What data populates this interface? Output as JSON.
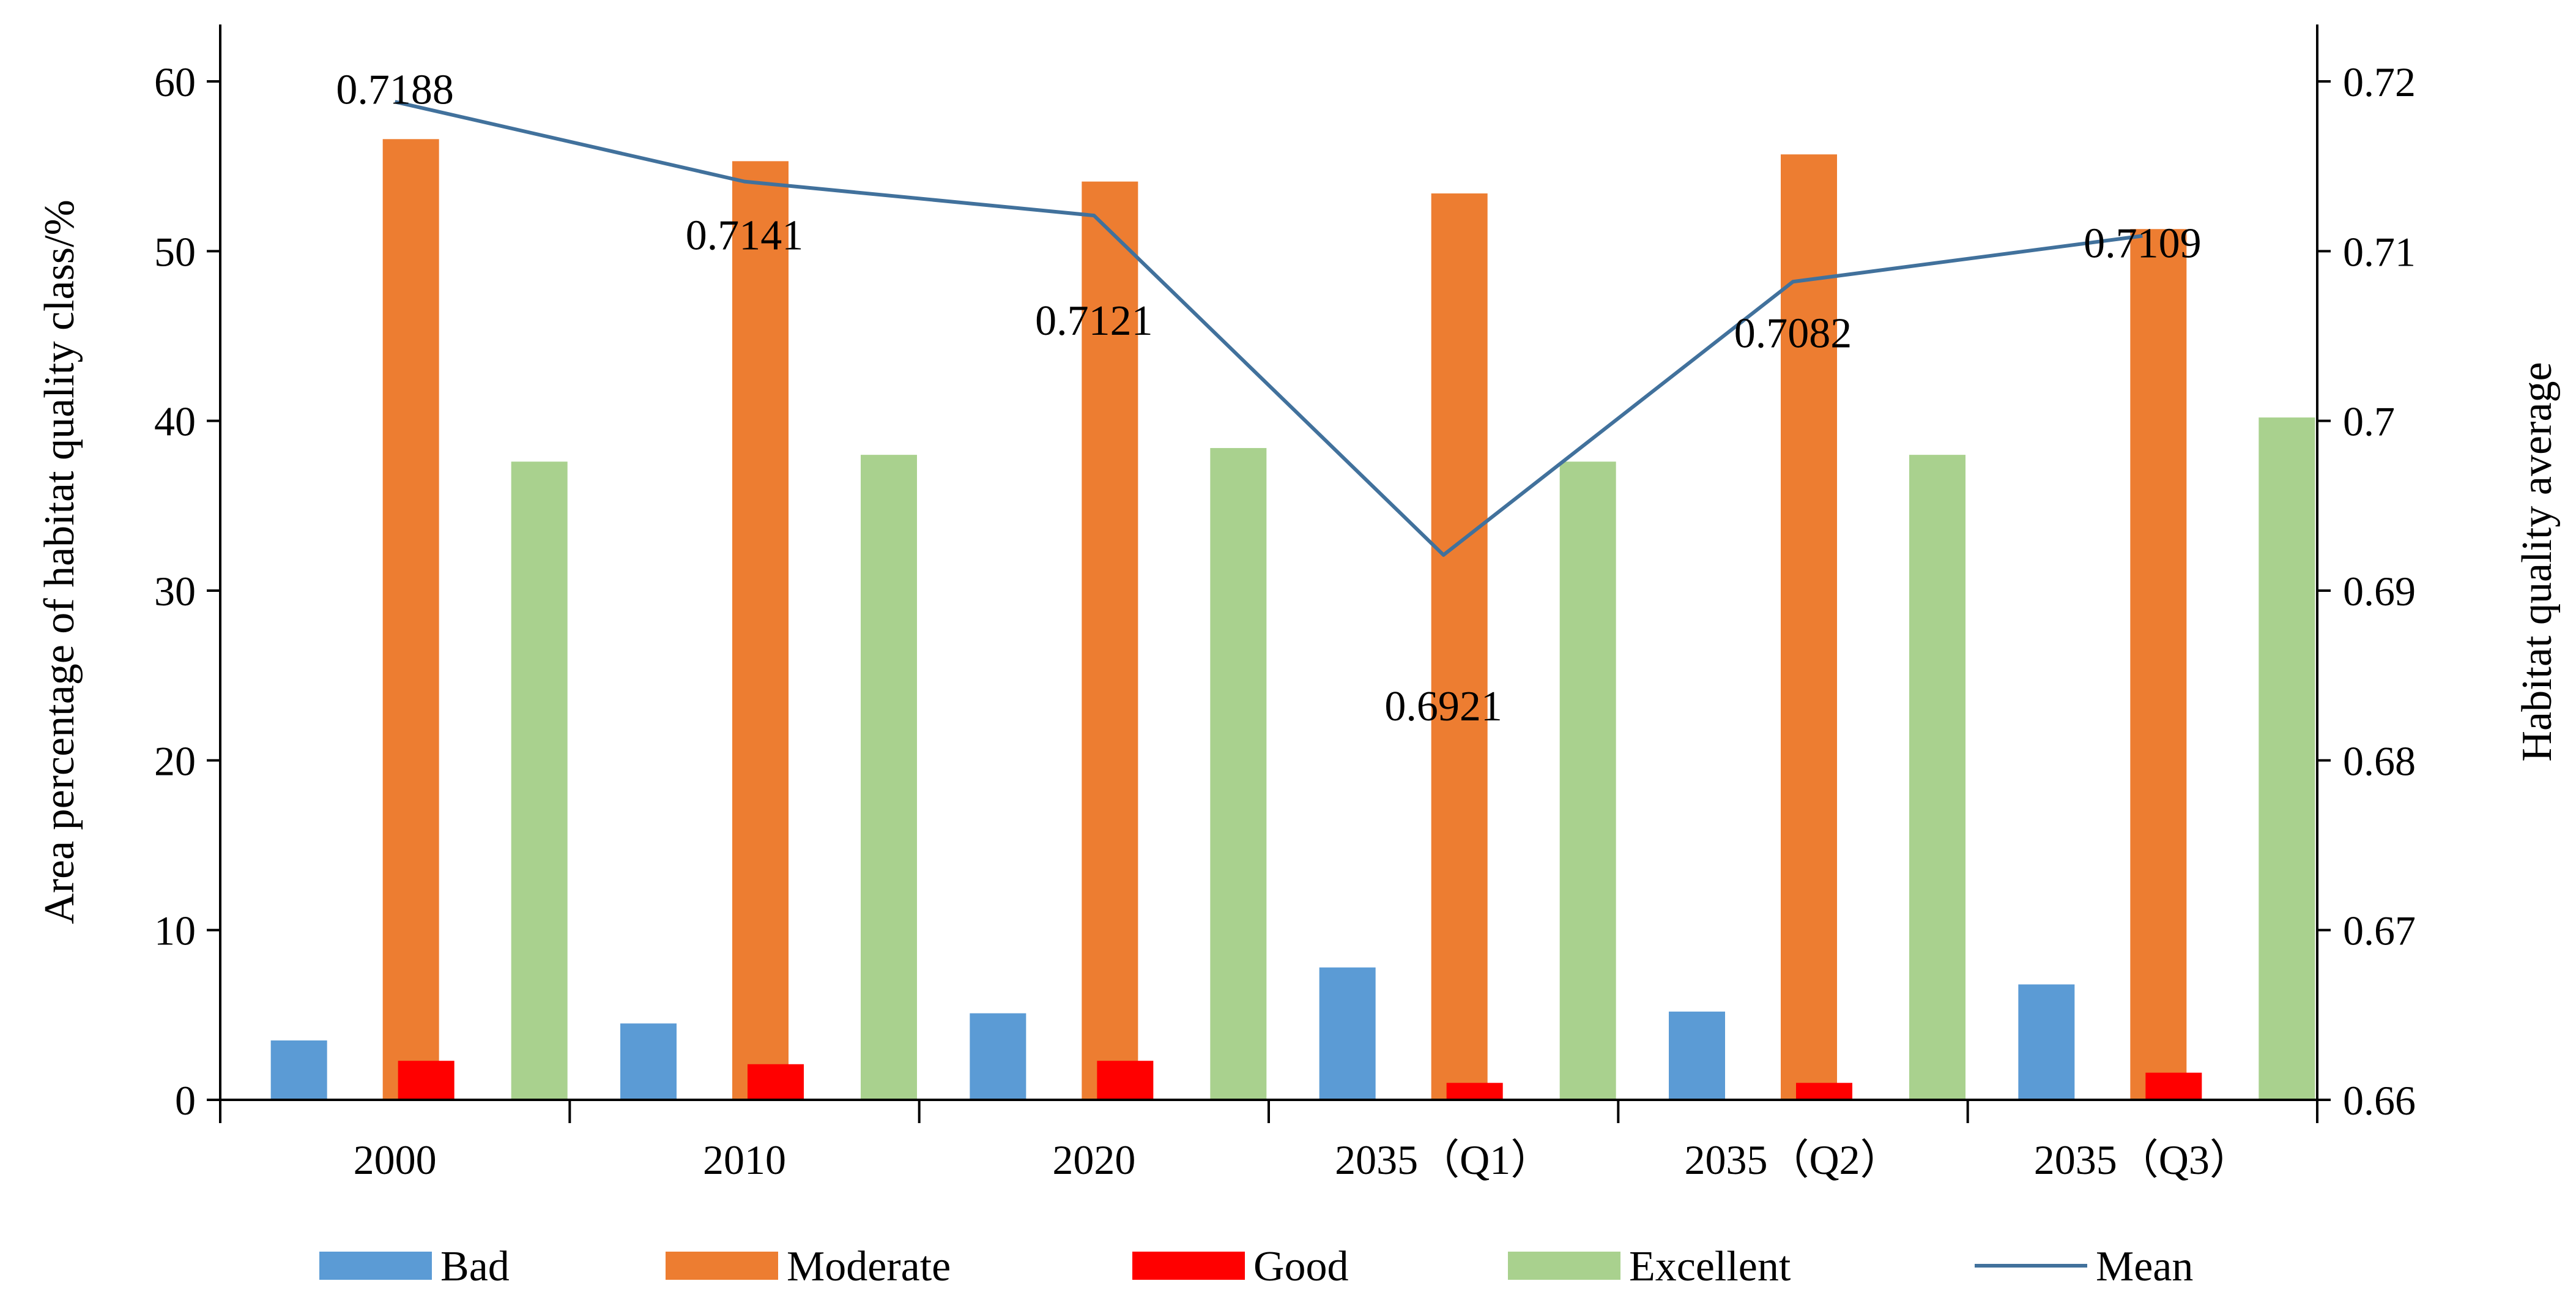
{
  "chart_data": {
    "type": "bar",
    "categories": [
      "2000",
      "2010",
      "2020",
      "2035（Q1）",
      "2035（Q2）",
      "2035（Q3）"
    ],
    "series": [
      {
        "name": "Bad",
        "values": [
          3.5,
          4.5,
          5.1,
          7.8,
          5.2,
          6.8
        ],
        "color": "#5B9BD5"
      },
      {
        "name": "Moderate",
        "values": [
          56.6,
          55.3,
          54.1,
          53.4,
          55.7,
          51.3
        ],
        "color": "#ED7D31"
      },
      {
        "name": "Good",
        "values": [
          2.3,
          2.1,
          2.3,
          1.0,
          1.0,
          1.6
        ],
        "color": "#FF0000"
      },
      {
        "name": "Excellent",
        "values": [
          37.6,
          38.0,
          38.4,
          37.6,
          38.0,
          40.2
        ],
        "color": "#A9D18E"
      }
    ],
    "line_series": {
      "name": "Mean",
      "axis": "right",
      "values": [
        0.7188,
        0.7141,
        0.7121,
        0.6921,
        0.7082,
        0.7109
      ],
      "labels": [
        "0.7188",
        "0.7141",
        "0.7121",
        "0.6921",
        "0.7082",
        "0.7109"
      ],
      "color": "#41719C"
    },
    "ylabel": "Area percentage of habitat quality class/%",
    "ylim": [
      0,
      60
    ],
    "yticks": [
      "0",
      "10",
      "20",
      "30",
      "40",
      "50",
      "60"
    ],
    "y2label": "Habitat quality average",
    "y2lim": [
      0.66,
      0.72
    ],
    "y2ticks": [
      "0.66",
      "0.67",
      "0.68",
      "0.69",
      "0.7",
      "0.71",
      "0.72"
    ],
    "grid": false,
    "legend_position": "bottom",
    "legend": [
      "Bad",
      "Moderate",
      "Good",
      "Excellent",
      "Mean"
    ]
  }
}
